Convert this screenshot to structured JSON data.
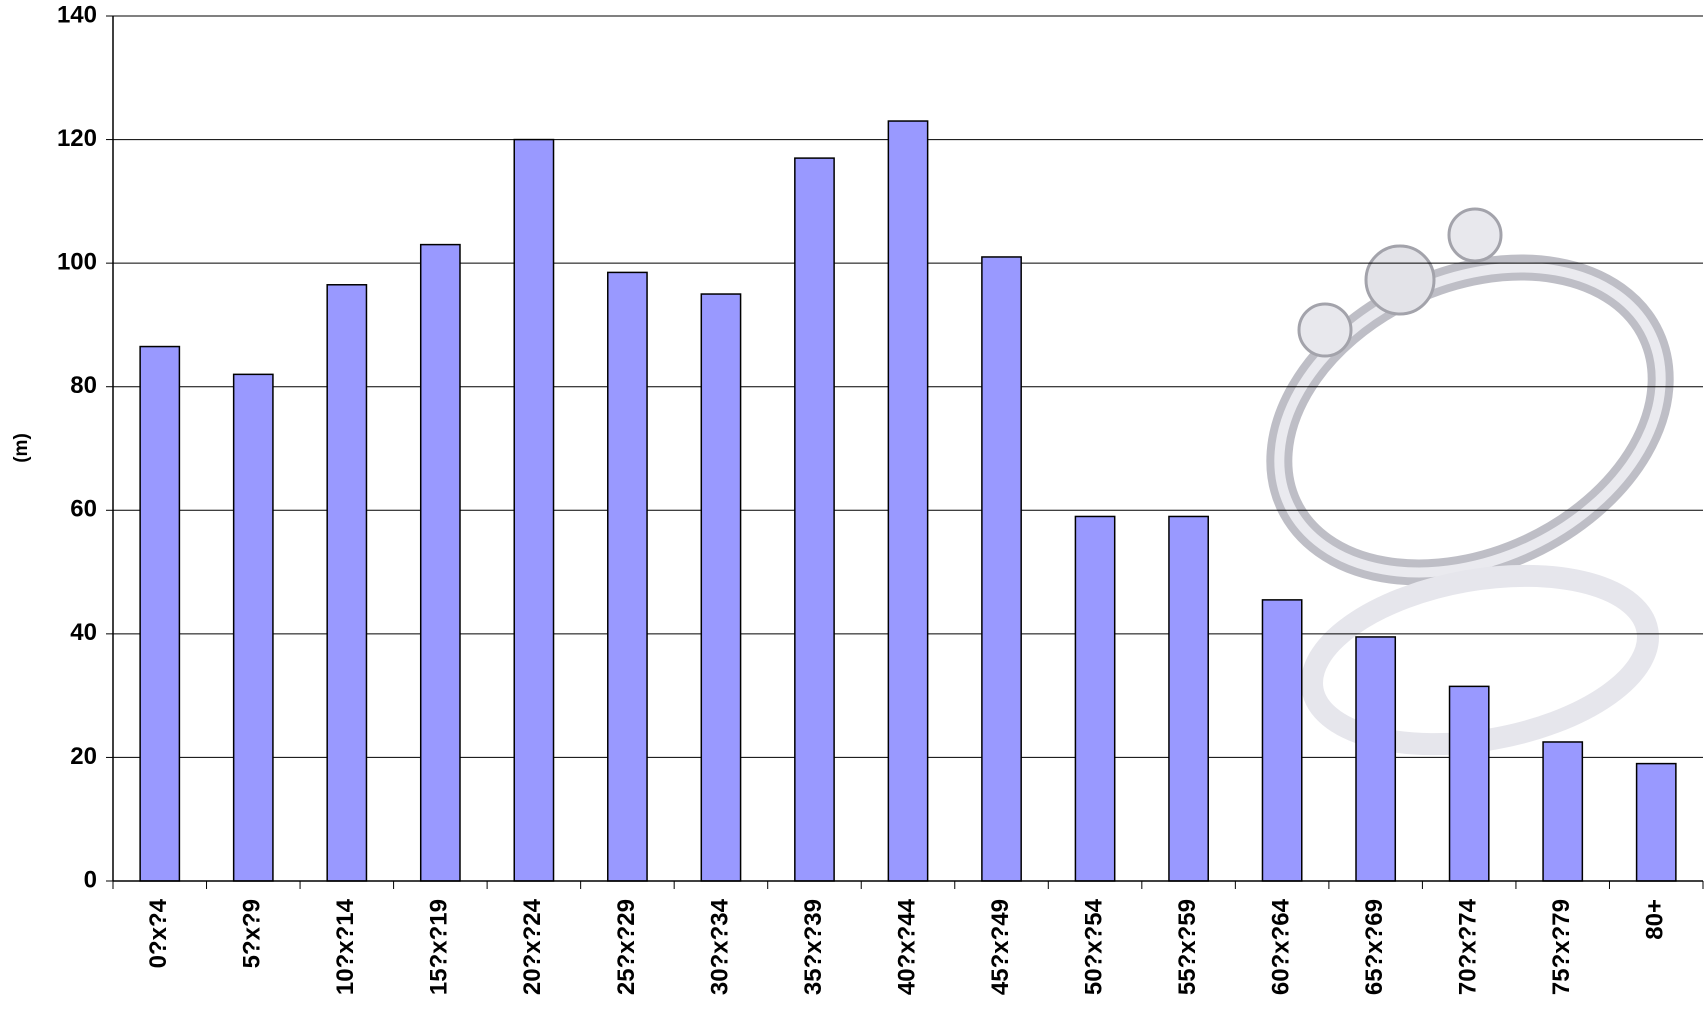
{
  "chart_data": {
    "type": "bar",
    "y_label": "(m)",
    "categories": [
      "0?x?4",
      "5?x?9",
      "10?x?14",
      "15?x?19",
      "20?x?24",
      "25?x?29",
      "30?x?34",
      "35?x?39",
      "40?x?44",
      "45?x?49",
      "50?x?54",
      "55?x?59",
      "60?x?64",
      "65?x?69",
      "70?x?74",
      "75?x?79",
      "80+"
    ],
    "values": [
      86.5,
      82,
      96.5,
      103,
      120,
      98.5,
      95,
      117,
      123,
      101,
      59,
      59,
      45.5,
      39.5,
      31.5,
      22.5,
      19
    ],
    "color": "#9999ff",
    "ylim": [
      0,
      140
    ],
    "yticks": [
      0,
      20,
      40,
      60,
      80,
      100,
      120,
      140
    ],
    "grid": true
  }
}
